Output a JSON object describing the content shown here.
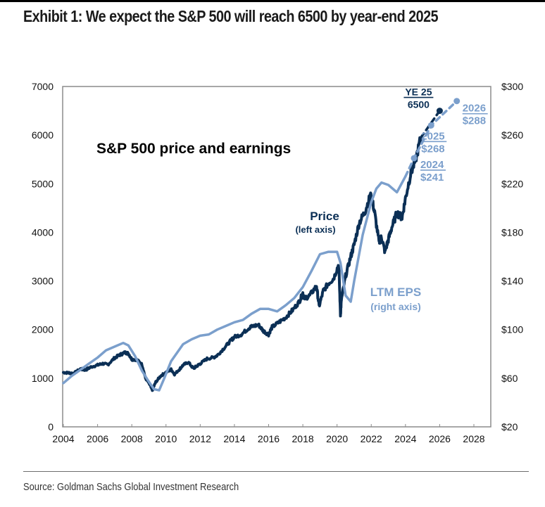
{
  "header": {
    "exhibit_title": "Exhibit 1: We expect the S&P 500 will reach 6500 by year-end 2025"
  },
  "footer": {
    "source": "Source: Goldman Sachs Global Investment Research"
  },
  "colors": {
    "price": "#0b2f55",
    "eps": "#7b9fcc",
    "frame": "#8c8c8c"
  },
  "chart_data": {
    "type": "line",
    "title": "S&P 500 price and earnings",
    "xlabel": "",
    "ylabel_left": "",
    "ylabel_right": "",
    "xlim": [
      2004,
      2029
    ],
    "ylim_left": [
      0,
      7000
    ],
    "ylim_right": [
      20,
      300
    ],
    "grid": false,
    "x_ticks": [
      "2004",
      "2006",
      "2008",
      "2010",
      "2012",
      "2014",
      "2016",
      "2018",
      "2020",
      "2022",
      "2024",
      "2026",
      "2028"
    ],
    "y_ticks_left": [
      "0",
      "1000",
      "2000",
      "3000",
      "4000",
      "5000",
      "6000",
      "7000"
    ],
    "y_ticks_right": [
      "$20",
      "$60",
      "$100",
      "$140",
      "$180",
      "$220",
      "$260",
      "$300"
    ],
    "series": [
      {
        "name": "Price",
        "axis": "left",
        "label": "Price",
        "sublabel": "(left axis)",
        "x": [
          2004.0,
          2004.3,
          2004.6,
          2005.0,
          2005.3,
          2005.6,
          2006.0,
          2006.3,
          2006.6,
          2007.0,
          2007.3,
          2007.6,
          2007.8,
          2008.0,
          2008.3,
          2008.6,
          2008.8,
          2009.0,
          2009.2,
          2009.4,
          2009.7,
          2010.0,
          2010.3,
          2010.5,
          2010.8,
          2011.0,
          2011.3,
          2011.6,
          2011.8,
          2012.0,
          2012.4,
          2012.8,
          2013.0,
          2013.4,
          2013.8,
          2014.0,
          2014.4,
          2014.8,
          2015.0,
          2015.4,
          2015.7,
          2016.0,
          2016.2,
          2016.6,
          2017.0,
          2017.4,
          2017.8,
          2018.0,
          2018.1,
          2018.4,
          2018.8,
          2018.95,
          2019.2,
          2019.5,
          2019.8,
          2020.1,
          2020.2,
          2020.25,
          2020.5,
          2020.8,
          2021.0,
          2021.3,
          2021.6,
          2021.9,
          2022.0,
          2022.2,
          2022.45,
          2022.6,
          2022.8,
          2023.0,
          2023.2,
          2023.5,
          2023.8,
          2024.0,
          2024.3,
          2024.6,
          2024.9
        ],
        "values": [
          1120,
          1110,
          1100,
          1190,
          1170,
          1230,
          1270,
          1300,
          1280,
          1420,
          1480,
          1530,
          1510,
          1390,
          1380,
          1280,
          1000,
          900,
          750,
          920,
          1050,
          1120,
          1180,
          1080,
          1190,
          1270,
          1330,
          1200,
          1250,
          1300,
          1400,
          1430,
          1470,
          1620,
          1780,
          1850,
          1900,
          2020,
          2060,
          2100,
          1970,
          1900,
          2050,
          2150,
          2250,
          2400,
          2580,
          2750,
          2640,
          2700,
          2900,
          2480,
          2800,
          2950,
          3050,
          3350,
          2300,
          2600,
          3100,
          3500,
          3750,
          4200,
          4400,
          4700,
          4750,
          4400,
          3800,
          3900,
          3600,
          3850,
          4100,
          4400,
          4300,
          4700,
          5200,
          5500,
          5950
        ]
      },
      {
        "name": "Price forecast",
        "axis": "left",
        "style": "dashed",
        "x": [
          2024.9,
          2026.0
        ],
        "values": [
          5950,
          6500
        ]
      },
      {
        "name": "LTM EPS",
        "axis": "right",
        "label": "LTM EPS",
        "sublabel": "(right axis)",
        "x": [
          2004.0,
          2004.5,
          2005.0,
          2005.5,
          2006.0,
          2006.5,
          2007.0,
          2007.5,
          2007.8,
          2008.2,
          2008.6,
          2009.0,
          2009.3,
          2009.6,
          2009.9,
          2010.3,
          2010.7,
          2011.0,
          2011.5,
          2012.0,
          2012.5,
          2013.0,
          2013.5,
          2014.0,
          2014.5,
          2015.0,
          2015.5,
          2016.0,
          2016.5,
          2017.0,
          2017.5,
          2018.0,
          2018.5,
          2019.0,
          2019.5,
          2020.0,
          2020.2,
          2020.5,
          2020.8,
          2021.0,
          2021.5,
          2022.0,
          2022.3,
          2022.6,
          2023.0,
          2023.5,
          2024.0
        ],
        "values": [
          56,
          62,
          67,
          72,
          77,
          83,
          86,
          89,
          87,
          78,
          66,
          57,
          51,
          50,
          60,
          74,
          82,
          88,
          92,
          95,
          96,
          100,
          103,
          106,
          108,
          113,
          117,
          117,
          115,
          120,
          126,
          135,
          148,
          162,
          164,
          164,
          155,
          128,
          123,
          140,
          178,
          205,
          216,
          221,
          219,
          213,
          226
        ]
      },
      {
        "name": "EPS forecast",
        "axis": "right",
        "style": "dashed",
        "x": [
          2024.0,
          2024.5,
          2025.5,
          2027.0
        ],
        "values": [
          226,
          241,
          268,
          288
        ]
      }
    ],
    "annotations": [
      {
        "label": "YE 25",
        "value": "6500",
        "series": "Price forecast",
        "x": 2026.0,
        "y": 6500
      },
      {
        "label": "2024",
        "value": "$241",
        "series": "EPS forecast",
        "x": 2024.5,
        "y": 241
      },
      {
        "label": "2025",
        "value": "$268",
        "series": "EPS forecast",
        "x": 2025.5,
        "y": 268
      },
      {
        "label": "2026",
        "value": "$288",
        "series": "EPS forecast",
        "x": 2027.0,
        "y": 288
      }
    ]
  }
}
